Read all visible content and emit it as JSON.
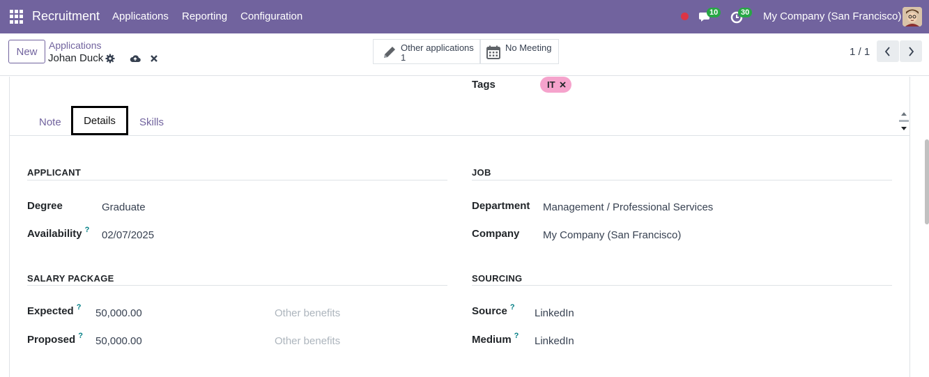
{
  "navbar": {
    "brand": "Recruitment",
    "menu": [
      "Applications",
      "Reporting",
      "Configuration"
    ],
    "messages_count": "10",
    "activities_count": "30",
    "company": "My Company (San Francisco)"
  },
  "control": {
    "new_label": "New",
    "breadcrumb_parent": "Applications",
    "breadcrumb_current": "Johan Duck",
    "smart_buttons": {
      "other_applications_label": "Other applications",
      "other_applications_count": "1",
      "meeting_label": "No Meeting"
    },
    "pager": "1 / 1"
  },
  "form": {
    "tags_label": "Tags",
    "tag": "IT",
    "tabs": {
      "note": "Note",
      "details": "Details",
      "skills": "Skills"
    },
    "applicant": {
      "title": "APPLICANT",
      "degree_label": "Degree",
      "degree_value": "Graduate",
      "availability_label": "Availability",
      "availability_value": "02/07/2025"
    },
    "job": {
      "title": "JOB",
      "department_label": "Department",
      "department_value": "Management / Professional Services",
      "company_label": "Company",
      "company_value": "My Company (San Francisco)"
    },
    "salary": {
      "title": "SALARY PACKAGE",
      "expected_label": "Expected",
      "expected_value": "50,000.00",
      "expected_benefits_placeholder": "Other benefits",
      "proposed_label": "Proposed",
      "proposed_value": "50,000.00",
      "proposed_benefits_placeholder": "Other benefits"
    },
    "sourcing": {
      "title": "SOURCING",
      "source_label": "Source",
      "source_value": "LinkedIn",
      "medium_label": "Medium",
      "medium_value": "LinkedIn"
    },
    "help_mark": "?"
  },
  "colors": {
    "navbar": "#71639e",
    "accent": "#71639e",
    "tag": "#f5a3cc",
    "badge": "#28a745",
    "help": "#017e84"
  },
  "icons": [
    "apps-grid-icon",
    "chat-icon",
    "activity-clock-icon",
    "gear-icon",
    "cloud-upload-icon",
    "close-icon",
    "pencil-icon",
    "calendar-icon",
    "chevron-left-icon",
    "chevron-right-icon"
  ]
}
